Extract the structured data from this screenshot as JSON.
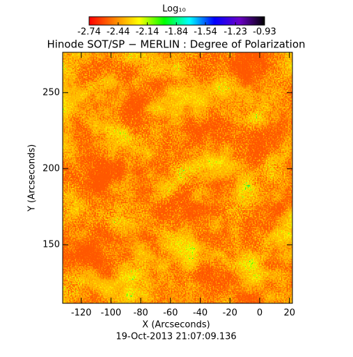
{
  "chart_data": {
    "type": "image",
    "title": "Hinode SOT/SP − MERLIN : Degree of Polarization",
    "footer": "19-Oct-2013 21:07:09.136",
    "x_label": "X (Arcseconds)",
    "y_label": "Y (Arcseconds)",
    "xlim": [
      -132.5,
      22
    ],
    "ylim": [
      111.5,
      276.5
    ],
    "xticks": [
      -120,
      -100,
      -80,
      -60,
      -40,
      -20,
      0,
      20
    ],
    "yticks": [
      150,
      200,
      250
    ],
    "colorbar": {
      "label": "Log₁₀",
      "lim": [
        -2.74,
        -0.93
      ],
      "ticks": [
        -2.74,
        -2.44,
        -2.14,
        -1.84,
        -1.54,
        -1.23,
        -0.93
      ],
      "colors": [
        "#ff0000",
        "#ff8000",
        "#ffff00",
        "#00ff00",
        "#00ffff",
        "#0000ff",
        "#6a00c8",
        "#000000"
      ]
    }
  }
}
